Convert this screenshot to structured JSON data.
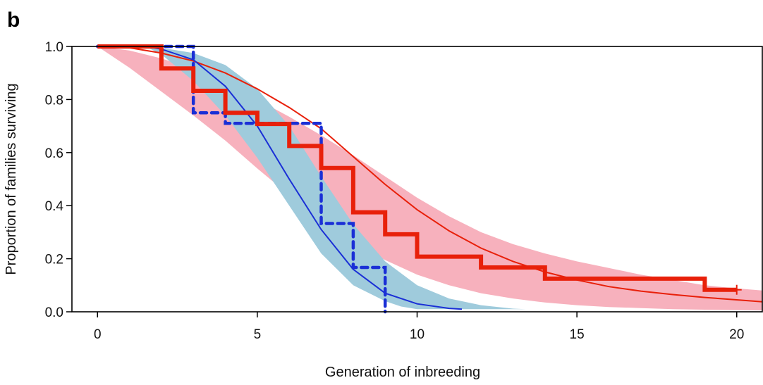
{
  "panel_label": "b",
  "chart_data": {
    "type": "line",
    "xlabel": "Generation of inbreeding",
    "ylabel": "Proportion of families surviving",
    "xlim": [
      -0.8,
      20.8
    ],
    "ylim": [
      0.0,
      1.0
    ],
    "x_ticks": [
      0,
      5,
      10,
      15,
      20
    ],
    "y_ticks": [
      0.0,
      0.2,
      0.4,
      0.6,
      0.8,
      1.0
    ],
    "x_tick_labels": [
      "0",
      "5",
      "10",
      "15",
      "20"
    ],
    "y_tick_labels": [
      "0.0",
      "0.2",
      "0.4",
      "0.6",
      "0.8",
      "1.0"
    ],
    "grid": false,
    "colors": {
      "red_line": "#e8200a",
      "red_band": "#f7b1bd",
      "blue_line": "#1a2fd6",
      "blue_band": "#9fcbdc",
      "blue_step": "#1a2fd6"
    },
    "series": [
      {
        "kind": "confidence-band",
        "color": "#f7b1bd",
        "upper": [
          [
            0,
            1.0
          ],
          [
            1,
            0.985
          ],
          [
            2,
            0.955
          ],
          [
            3,
            0.915
          ],
          [
            4,
            0.86
          ],
          [
            5,
            0.8
          ],
          [
            6,
            0.735
          ],
          [
            7,
            0.665
          ],
          [
            8,
            0.59
          ],
          [
            9,
            0.51
          ],
          [
            10,
            0.43
          ],
          [
            11,
            0.36
          ],
          [
            12,
            0.3
          ],
          [
            13,
            0.255
          ],
          [
            14,
            0.22
          ],
          [
            15,
            0.19
          ],
          [
            16,
            0.165
          ],
          [
            17,
            0.14
          ],
          [
            18,
            0.12
          ],
          [
            19,
            0.1
          ],
          [
            20,
            0.088
          ],
          [
            20.8,
            0.08
          ]
        ],
        "lower": [
          [
            0,
            1.0
          ],
          [
            1,
            0.92
          ],
          [
            2,
            0.83
          ],
          [
            3,
            0.74
          ],
          [
            4,
            0.645
          ],
          [
            5,
            0.54
          ],
          [
            6,
            0.44
          ],
          [
            7,
            0.34
          ],
          [
            8,
            0.26
          ],
          [
            9,
            0.195
          ],
          [
            10,
            0.14
          ],
          [
            11,
            0.1
          ],
          [
            12,
            0.07
          ],
          [
            13,
            0.05
          ],
          [
            14,
            0.035
          ],
          [
            15,
            0.025
          ],
          [
            16,
            0.018
          ],
          [
            17,
            0.014
          ],
          [
            18,
            0.01
          ],
          [
            19,
            0.008
          ],
          [
            20,
            0.006
          ],
          [
            20.8,
            0.005
          ]
        ]
      },
      {
        "kind": "confidence-band",
        "color": "#9fcbdc",
        "upper": [
          [
            1.5,
            1.0
          ],
          [
            2,
            0.995
          ],
          [
            3,
            0.975
          ],
          [
            4,
            0.93
          ],
          [
            5,
            0.84
          ],
          [
            6,
            0.7
          ],
          [
            7,
            0.51
          ],
          [
            8,
            0.33
          ],
          [
            9,
            0.19
          ],
          [
            10,
            0.1
          ],
          [
            11,
            0.05
          ],
          [
            12,
            0.025
          ],
          [
            13,
            0.012
          ],
          [
            13.4,
            0.01
          ]
        ],
        "lower": [
          [
            1.5,
            1.0
          ],
          [
            2,
            0.97
          ],
          [
            3,
            0.87
          ],
          [
            4,
            0.74
          ],
          [
            5,
            0.58
          ],
          [
            6,
            0.4
          ],
          [
            7,
            0.22
          ],
          [
            8,
            0.1
          ],
          [
            9,
            0.04
          ],
          [
            9.5,
            0.02
          ],
          [
            10,
            0.01
          ],
          [
            13.4,
            0.01
          ]
        ]
      },
      {
        "kind": "line",
        "color": "#e8200a",
        "width": 2,
        "points": [
          [
            0.6,
            1.0
          ],
          [
            1,
            0.995
          ],
          [
            2,
            0.975
          ],
          [
            3,
            0.945
          ],
          [
            4,
            0.9
          ],
          [
            5,
            0.84
          ],
          [
            6,
            0.77
          ],
          [
            7,
            0.69
          ],
          [
            8,
            0.585
          ],
          [
            9,
            0.48
          ],
          [
            10,
            0.385
          ],
          [
            11,
            0.305
          ],
          [
            12,
            0.24
          ],
          [
            13,
            0.19
          ],
          [
            14,
            0.15
          ],
          [
            15,
            0.12
          ],
          [
            16,
            0.095
          ],
          [
            17,
            0.078
          ],
          [
            18,
            0.065
          ],
          [
            19,
            0.054
          ],
          [
            20,
            0.045
          ],
          [
            20.8,
            0.038
          ]
        ]
      },
      {
        "kind": "line",
        "color": "#1a2fd6",
        "width": 2,
        "points": [
          [
            1.5,
            1.0
          ],
          [
            2,
            0.99
          ],
          [
            3,
            0.95
          ],
          [
            4,
            0.85
          ],
          [
            5,
            0.7
          ],
          [
            6,
            0.5
          ],
          [
            7,
            0.31
          ],
          [
            8,
            0.16
          ],
          [
            9,
            0.07
          ],
          [
            10,
            0.03
          ],
          [
            11,
            0.013
          ],
          [
            11.4,
            0.01
          ]
        ]
      },
      {
        "kind": "step",
        "color": "#1a2fd6",
        "width": 4.5,
        "dashed": true,
        "points": [
          [
            0,
            1.0
          ],
          [
            3,
            1.0
          ],
          [
            3,
            0.75
          ],
          [
            4,
            0.75
          ],
          [
            4,
            0.71
          ],
          [
            5,
            0.71
          ],
          [
            5,
            0.71
          ],
          [
            7,
            0.71
          ],
          [
            7,
            0.5
          ],
          [
            7,
            0.333
          ],
          [
            8,
            0.333
          ],
          [
            8,
            0.167
          ],
          [
            9,
            0.167
          ],
          [
            9,
            0.0
          ]
        ]
      },
      {
        "kind": "step",
        "color": "#e8200a",
        "width": 6,
        "dashed": false,
        "points": [
          [
            0,
            1.0
          ],
          [
            2,
            1.0
          ],
          [
            2,
            0.917
          ],
          [
            3,
            0.917
          ],
          [
            3,
            0.833
          ],
          [
            4,
            0.833
          ],
          [
            4,
            0.75
          ],
          [
            5,
            0.75
          ],
          [
            5,
            0.708
          ],
          [
            6,
            0.708
          ],
          [
            6,
            0.625
          ],
          [
            7,
            0.625
          ],
          [
            7,
            0.542
          ],
          [
            8,
            0.542
          ],
          [
            8,
            0.375
          ],
          [
            9,
            0.375
          ],
          [
            9,
            0.292
          ],
          [
            10,
            0.292
          ],
          [
            10,
            0.208
          ],
          [
            12,
            0.208
          ],
          [
            12,
            0.167
          ],
          [
            14,
            0.167
          ],
          [
            14,
            0.125
          ],
          [
            19,
            0.125
          ],
          [
            19,
            0.083
          ],
          [
            20,
            0.083
          ]
        ]
      }
    ],
    "censor_mark": {
      "x": 20,
      "y": 0.083,
      "color": "#e8200a"
    }
  }
}
